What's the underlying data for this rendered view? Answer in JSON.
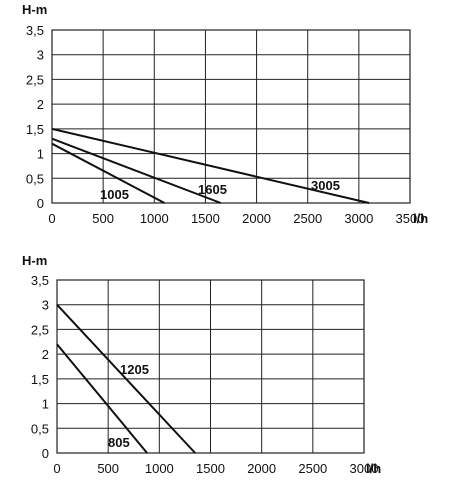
{
  "chart_data": [
    {
      "type": "line",
      "title": "",
      "ylabel": "H-m",
      "xlabel": "l/h",
      "xlim": [
        0,
        3500
      ],
      "ylim": [
        0,
        3.5
      ],
      "x_ticks": [
        "0",
        "500",
        "1000",
        "1500",
        "2000",
        "2500",
        "3000",
        "3500"
      ],
      "y_ticks": [
        "0",
        "0,5",
        "1",
        "1,5",
        "2",
        "2,5",
        "3",
        "3,5"
      ],
      "grid": true,
      "series": [
        {
          "name": "1005",
          "x": [
            0,
            1100
          ],
          "y": [
            1.2,
            0
          ]
        },
        {
          "name": "1605",
          "x": [
            0,
            1650
          ],
          "y": [
            1.3,
            0
          ]
        },
        {
          "name": "3005",
          "x": [
            0,
            3100
          ],
          "y": [
            1.5,
            0
          ]
        }
      ]
    },
    {
      "type": "line",
      "title": "",
      "ylabel": "H-m",
      "xlabel": "l/h",
      "xlim": [
        0,
        3000
      ],
      "ylim": [
        0,
        3.5
      ],
      "x_ticks": [
        "0",
        "500",
        "1000",
        "1500",
        "2000",
        "2500",
        "3000"
      ],
      "y_ticks": [
        "0",
        "0,5",
        "1",
        "1,5",
        "2",
        "2,5",
        "3",
        "3,5"
      ],
      "grid": true,
      "series": [
        {
          "name": "805",
          "x": [
            0,
            880
          ],
          "y": [
            2.2,
            0
          ]
        },
        {
          "name": "1205",
          "x": [
            0,
            1350
          ],
          "y": [
            3.0,
            0
          ]
        }
      ]
    }
  ]
}
